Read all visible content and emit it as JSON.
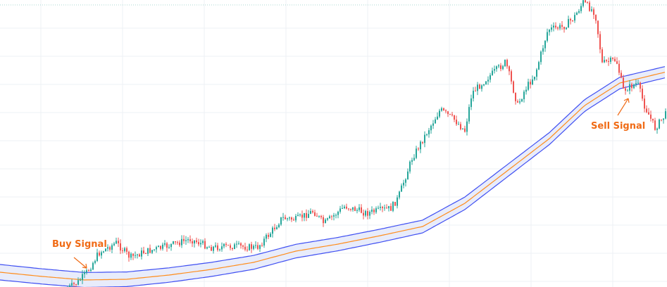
{
  "chart_data": {
    "type": "candlestick",
    "grid": true,
    "colors": {
      "up": "#26a69a",
      "down": "#ef5350",
      "band": "#3f4ff2",
      "midline": "#ff8c1a",
      "band_fill": "#e8ecfb",
      "annotation": "#f06b16",
      "grid": "#eef0f4"
    },
    "annotations": [
      {
        "text": "Buy Signal"
      },
      {
        "text": "Sell Signal"
      }
    ]
  }
}
